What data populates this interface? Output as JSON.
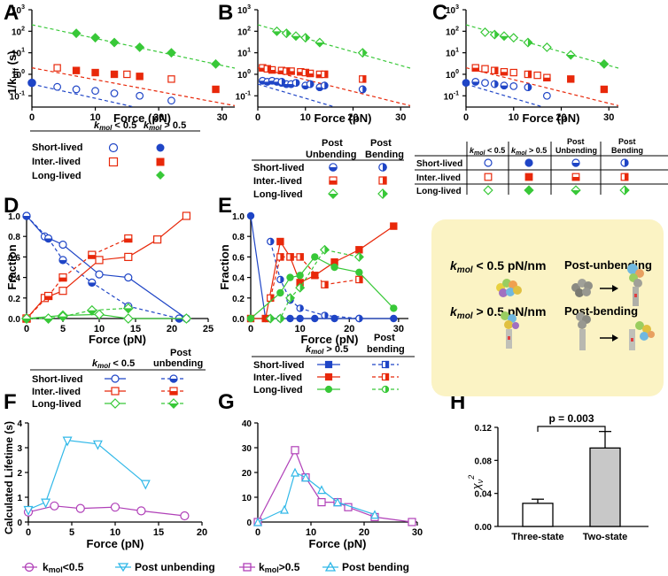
{
  "figure": {
    "colors": {
      "blue": "#1f45c6",
      "red": "#e8280a",
      "green": "#38c838",
      "purple": "#b040b8",
      "cyan": "#30b8e8",
      "black": "#000000",
      "gray": "#c8c8c8",
      "beige": "#fbf3c4"
    },
    "panelA": {
      "label": "A",
      "ylabel": "1/k",
      "ylabel_sub": "off",
      "ylabel_unit": " (s)",
      "xlabel": "Force (pN)",
      "xticks": [
        "0",
        "10",
        "20",
        "30"
      ],
      "yticks": [
        "10",
        "10",
        "10",
        "10",
        "10"
      ],
      "yexps": [
        "-1",
        "0",
        "1",
        "2",
        "3"
      ]
    },
    "panelB": {
      "label": "B",
      "xlabel": "Force (pN)",
      "xticks": [
        "0",
        "10",
        "20",
        "30"
      ],
      "yticks": [
        "10",
        "10",
        "10",
        "10",
        "10"
      ],
      "yexps": [
        "-1",
        "0",
        "1",
        "2",
        "3"
      ]
    },
    "panelC": {
      "label": "C",
      "xlabel": "Force (pN)",
      "xticks": [
        "0",
        "10",
        "20",
        "30"
      ],
      "yticks": [
        "10",
        "10",
        "10",
        "10",
        "10"
      ],
      "yexps": [
        "-1",
        "0",
        "1",
        "2",
        "3"
      ]
    },
    "panelD": {
      "label": "D",
      "ylabel": "Fraction",
      "xlabel": "Force (pN)",
      "xticks": [
        "0",
        "5",
        "10",
        "15",
        "20",
        "25"
      ],
      "yticks": [
        "0.0",
        "0.2",
        "0.4",
        "0.6",
        "0.8",
        "1.0"
      ]
    },
    "panelE": {
      "label": "E",
      "ylabel": "Fraction",
      "xlabel": "Force (pN)",
      "xticks": [
        "0",
        "10",
        "20",
        "30"
      ],
      "yticks": [
        "0.0",
        "0.2",
        "0.4",
        "0.6",
        "0.8",
        "1.0"
      ]
    },
    "panelF": {
      "label": "F",
      "ylabel": "Calculated Lifetime (s)",
      "xlabel": "Force (pN)",
      "xticks": [
        "0",
        "5",
        "10",
        "15",
        "20"
      ],
      "yticks": [
        "0",
        "1",
        "2",
        "3",
        "4"
      ],
      "legend": [
        "k",
        "mol",
        "<0.5",
        "Post unbending"
      ]
    },
    "panelG": {
      "label": "G",
      "xlabel": "Force (pN)",
      "xticks": [
        "0",
        "10",
        "20",
        "30"
      ],
      "yticks": [
        "0",
        "10",
        "20",
        "30",
        "40"
      ],
      "legend": [
        "k",
        "mol",
        ">0.5",
        "Post bending"
      ]
    },
    "panelH": {
      "label": "H",
      "ylabel": "χ",
      "ylabel_sub": "ν",
      "ylabel_sup": "2",
      "yticks": [
        "0.00",
        "0.04",
        "0.08",
        "0.12"
      ],
      "pvalue": "p = 0.003",
      "categories": [
        "Three-state",
        "Two-state"
      ]
    },
    "legends": {
      "k": "k",
      "mol": "mol",
      "lt05": " < 0.5",
      "gt05": " > 0.5",
      "lt05b": " < 0.5",
      "gt05b": " > 0.5",
      "short": "Short-lived",
      "inter": "Inter.-lived",
      "long": "Long-lived",
      "post": "Post",
      "unbending": "Unbending",
      "bending": "Bending",
      "post_lc": "Post",
      "unbending_lc": "unbending",
      "bending_lc": "bending"
    },
    "inset": {
      "row1_k": "k",
      "row1_mol": "mol",
      "row1_val": " < 0.5 pN/nm",
      "row1_state": "Post-unbending",
      "row2_k": "k",
      "row2_mol": "mol",
      "row2_val": " > 0.5 pN/nm",
      "row2_state": "Post-bending"
    }
  },
  "chart_data": [
    {
      "panel": "A",
      "type": "scatter",
      "title": "",
      "xlabel": "Force (pN)",
      "ylabel": "1/koff (s)",
      "yscale": "log",
      "xlim": [
        0,
        32
      ],
      "ylim": [
        0.03,
        1000
      ],
      "series": [
        {
          "name": "Short-lived kmol<0.5",
          "x": [
            4,
            7,
            10,
            13,
            17,
            22
          ],
          "y": [
            0.26,
            0.2,
            0.17,
            0.13,
            0.1,
            0.06
          ]
        },
        {
          "name": "Short-lived kmol>0.5",
          "x": [
            0
          ],
          "y": [
            0.4
          ]
        },
        {
          "name": "Inter.-lived kmol<0.5",
          "x": [
            4,
            15,
            22
          ],
          "y": [
            2.0,
            1.0,
            0.6
          ]
        },
        {
          "name": "Inter.-lived kmol>0.5",
          "x": [
            7,
            10,
            13,
            17,
            29
          ],
          "y": [
            1.5,
            1.2,
            1.0,
            0.8,
            0.2
          ]
        },
        {
          "name": "Long-lived kmol>0.5",
          "x": [
            7,
            10,
            13,
            17,
            22,
            29
          ],
          "y": [
            80,
            50,
            30,
            18,
            10,
            3
          ]
        }
      ]
    },
    {
      "panel": "B",
      "type": "scatter",
      "xlabel": "Force (pN)",
      "yscale": "log",
      "xlim": [
        0,
        32
      ],
      "ylim": [
        0.03,
        1000
      ],
      "series": [
        {
          "name": "Short-lived Post Unbending",
          "x": [
            1,
            2,
            3,
            4,
            5,
            6,
            7,
            10,
            13
          ],
          "y": [
            0.5,
            0.45,
            0.5,
            0.45,
            0.4,
            0.35,
            0.35,
            0.3,
            0.25
          ]
        },
        {
          "name": "Short-lived Post Bending",
          "x": [
            5,
            8,
            11,
            14,
            22
          ],
          "y": [
            0.45,
            0.4,
            0.35,
            0.3,
            0.2
          ]
        },
        {
          "name": "Inter.-lived Post Unbending",
          "x": [
            1,
            3,
            5,
            7,
            9,
            11,
            13
          ],
          "y": [
            2.0,
            1.6,
            1.5,
            1.4,
            1.3,
            1.1,
            1.0
          ]
        },
        {
          "name": "Inter.-lived Post Bending",
          "x": [
            2,
            6,
            10,
            14,
            22
          ],
          "y": [
            1.8,
            1.4,
            1.2,
            1.0,
            0.6
          ]
        },
        {
          "name": "Long-lived Post Unbending",
          "x": [
            4,
            8,
            13
          ],
          "y": [
            100,
            60,
            30
          ]
        },
        {
          "name": "Long-lived Post Bending",
          "x": [
            6,
            10,
            22
          ],
          "y": [
            80,
            50,
            10
          ]
        }
      ]
    },
    {
      "panel": "C",
      "type": "scatter",
      "xlabel": "Force (pN)",
      "yscale": "log",
      "xlim": [
        0,
        32
      ],
      "ylim": [
        0.03,
        1000
      ],
      "series": [
        {
          "name": "Short-lived combined",
          "x": [
            0,
            2,
            4,
            6,
            8,
            10,
            13,
            17
          ],
          "y": [
            0.4,
            0.45,
            0.4,
            0.35,
            0.3,
            0.28,
            0.25,
            0.1
          ]
        },
        {
          "name": "Inter.-lived combined",
          "x": [
            2,
            4,
            6,
            8,
            10,
            13,
            15,
            17,
            22,
            29
          ],
          "y": [
            2.0,
            1.8,
            1.5,
            1.3,
            1.2,
            1.0,
            0.9,
            0.7,
            0.6,
            0.2
          ]
        },
        {
          "name": "Long-lived combined",
          "x": [
            4,
            6,
            8,
            10,
            13,
            17,
            22,
            29
          ],
          "y": [
            90,
            70,
            60,
            50,
            30,
            18,
            8,
            3
          ]
        }
      ]
    },
    {
      "panel": "D",
      "type": "line",
      "xlabel": "Force (pN)",
      "ylabel": "Fraction",
      "xlim": [
        0,
        25
      ],
      "ylim": [
        0,
        1
      ],
      "series": [
        {
          "name": "Short-lived kmol<0.5",
          "x": [
            0,
            2.5,
            5,
            10,
            14,
            22
          ],
          "y": [
            1.0,
            0.8,
            0.72,
            0.43,
            0.4,
            0.0
          ]
        },
        {
          "name": "Short-lived Post unbending",
          "x": [
            0,
            3,
            5,
            9,
            14,
            21
          ],
          "y": [
            1.0,
            0.78,
            0.57,
            0.35,
            0.12,
            0.0
          ]
        },
        {
          "name": "Inter.-lived kmol<0.5",
          "x": [
            0,
            2.5,
            5,
            10,
            14,
            18,
            22
          ],
          "y": [
            0.0,
            0.2,
            0.27,
            0.57,
            0.6,
            0.77,
            1.0
          ]
        },
        {
          "name": "Inter.-lived Post unbending",
          "x": [
            0,
            3,
            5,
            9,
            14
          ],
          "y": [
            0.0,
            0.22,
            0.4,
            0.62,
            0.78
          ]
        },
        {
          "name": "Long-lived kmol<0.5",
          "x": [
            0,
            5,
            10,
            14,
            22
          ],
          "y": [
            0.0,
            0.03,
            0.04,
            0.0,
            0.0
          ]
        },
        {
          "name": "Long-lived Post unbending",
          "x": [
            0,
            3,
            5,
            9,
            14
          ],
          "y": [
            0.0,
            0.0,
            0.02,
            0.08,
            0.1
          ]
        }
      ]
    },
    {
      "panel": "E",
      "type": "line",
      "xlabel": "Force (pN)",
      "ylabel": "Fraction",
      "xlim": [
        0,
        32
      ],
      "ylim": [
        0,
        1
      ],
      "series": [
        {
          "name": "Short-lived kmol>0.5",
          "x": [
            0,
            3,
            6,
            8,
            10,
            13,
            17,
            22,
            29
          ],
          "y": [
            1.0,
            0.0,
            0.0,
            0.0,
            0.0,
            0.0,
            0.0,
            0.0,
            0.0
          ]
        },
        {
          "name": "Short-lived Post bending",
          "x": [
            4,
            6,
            8,
            10,
            15,
            22
          ],
          "y": [
            0.75,
            0.38,
            0.18,
            0.1,
            0.03,
            0.0
          ]
        },
        {
          "name": "Inter.-lived kmol>0.5",
          "x": [
            0,
            3,
            6,
            8,
            10,
            13,
            17,
            22,
            29
          ],
          "y": [
            0.0,
            0.0,
            0.75,
            0.6,
            0.35,
            0.42,
            0.55,
            0.67,
            0.9
          ]
        },
        {
          "name": "Inter.-lived Post bending",
          "x": [
            4,
            6,
            8,
            10,
            15,
            22
          ],
          "y": [
            0.2,
            0.6,
            0.6,
            0.6,
            0.33,
            0.38
          ]
        },
        {
          "name": "Long-lived kmol>0.5",
          "x": [
            0,
            6,
            8,
            10,
            13,
            17,
            22,
            29
          ],
          "y": [
            0.0,
            0.25,
            0.4,
            0.42,
            0.6,
            0.5,
            0.45,
            0.1
          ]
        },
        {
          "name": "Long-lived Post bending",
          "x": [
            4,
            6,
            8,
            10,
            15,
            22
          ],
          "y": [
            0.0,
            0.0,
            0.2,
            0.3,
            0.67,
            0.6
          ]
        }
      ]
    },
    {
      "panel": "F",
      "type": "line",
      "xlabel": "Force (pN)",
      "ylabel": "Calculated Lifetime (s)",
      "xlim": [
        0,
        20
      ],
      "ylim": [
        0,
        4
      ],
      "series": [
        {
          "name": "kmol<0.5",
          "x": [
            0,
            3,
            6,
            10,
            13,
            18
          ],
          "y": [
            0.4,
            0.65,
            0.55,
            0.6,
            0.45,
            0.25
          ]
        },
        {
          "name": "Post unbending",
          "x": [
            0,
            2,
            4.5,
            8,
            13.5
          ],
          "y": [
            0.5,
            0.8,
            3.3,
            3.15,
            1.55
          ]
        }
      ]
    },
    {
      "panel": "G",
      "type": "line",
      "xlabel": "Force (pN)",
      "xlim": [
        0,
        30
      ],
      "ylim": [
        0,
        40
      ],
      "series": [
        {
          "name": "kmol>0.5",
          "x": [
            0,
            7,
            9,
            12,
            15,
            17,
            22,
            29
          ],
          "y": [
            0,
            29,
            18,
            8,
            8,
            6,
            2,
            0
          ]
        },
        {
          "name": "Post bending",
          "x": [
            0,
            5,
            7,
            9,
            12,
            15,
            22
          ],
          "y": [
            0,
            5,
            20,
            18,
            13,
            8,
            3
          ]
        }
      ]
    },
    {
      "panel": "H",
      "type": "bar",
      "ylabel": "χν²",
      "categories": [
        "Three-state",
        "Two-state"
      ],
      "values": [
        0.028,
        0.095
      ],
      "errors": [
        0.005,
        0.02
      ],
      "ylim": [
        0,
        0.12
      ],
      "annotation": "p = 0.003"
    }
  ]
}
